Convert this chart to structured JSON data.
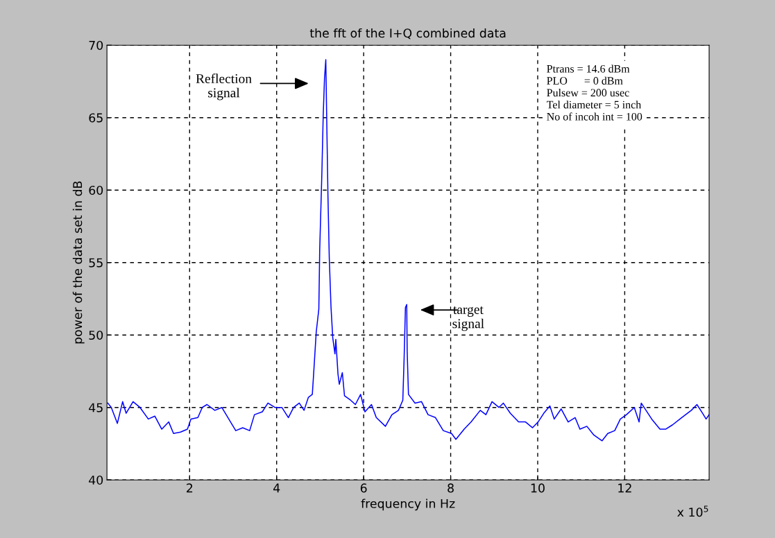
{
  "chart_data": {
    "type": "line",
    "title": "the fft of the I+Q combined data",
    "xlabel": "frequency in Hz",
    "ylabel": "power of the data set in dB",
    "xlim": [
      0.1,
      13.94
    ],
    "ylim": [
      40,
      70
    ],
    "xticks": [
      2,
      4,
      6,
      8,
      10,
      12
    ],
    "yticks": [
      40,
      45,
      50,
      55,
      60,
      65,
      70
    ],
    "grid": true,
    "legend": false,
    "marker": "none",
    "line_style": "solid",
    "x": [
      0.12,
      0.2,
      0.34,
      0.46,
      0.54,
      0.7,
      0.86,
      1.05,
      1.2,
      1.36,
      1.52,
      1.63,
      1.79,
      1.95,
      2.03,
      2.19,
      2.29,
      2.4,
      2.58,
      2.74,
      2.9,
      3.06,
      3.22,
      3.38,
      3.49,
      3.67,
      3.8,
      3.96,
      4.12,
      4.27,
      4.39,
      4.52,
      4.63,
      4.73,
      4.82,
      4.85,
      4.91,
      4.97,
      4.99,
      5.04,
      5.07,
      5.1,
      5.13,
      5.15,
      5.18,
      5.21,
      5.25,
      5.29,
      5.34,
      5.36,
      5.41,
      5.44,
      5.51,
      5.56,
      5.7,
      5.81,
      5.93,
      6.03,
      6.18,
      6.29,
      6.5,
      6.65,
      6.8,
      6.9,
      6.93,
      6.96,
      6.99,
      7.0,
      7.03,
      7.18,
      7.33,
      7.48,
      7.65,
      7.83,
      8.02,
      8.12,
      8.31,
      8.47,
      8.68,
      8.81,
      8.95,
      9.11,
      9.21,
      9.37,
      9.56,
      9.72,
      9.88,
      10.01,
      10.14,
      10.28,
      10.38,
      10.54,
      10.7,
      10.86,
      10.97,
      11.13,
      11.29,
      11.48,
      11.61,
      11.77,
      11.9,
      12.04,
      12.22,
      12.33,
      12.38,
      12.49,
      12.62,
      12.81,
      12.94,
      13.1,
      13.31,
      13.53,
      13.66,
      13.79,
      13.87,
      13.94
    ],
    "series": [
      {
        "color": "#0000ff",
        "values": [
          45.3,
          45.0,
          43.9,
          45.4,
          44.6,
          45.4,
          45.0,
          44.2,
          44.4,
          43.5,
          44.0,
          43.2,
          43.3,
          43.5,
          44.2,
          44.3,
          45.0,
          45.2,
          44.8,
          45.0,
          44.2,
          43.4,
          43.6,
          43.4,
          44.5,
          44.7,
          45.3,
          45.0,
          45.0,
          44.3,
          45.0,
          45.3,
          44.8,
          45.7,
          45.9,
          47.3,
          50.2,
          51.8,
          55.9,
          61.2,
          65.1,
          67.7,
          69.0,
          65.1,
          59.5,
          55.3,
          51.9,
          49.8,
          48.7,
          49.7,
          47.3,
          46.6,
          47.4,
          45.8,
          45.5,
          45.2,
          45.9,
          44.7,
          45.2,
          44.3,
          43.7,
          44.5,
          44.8,
          45.5,
          48.4,
          51.9,
          52.1,
          48.9,
          45.9,
          45.3,
          45.4,
          44.5,
          44.3,
          43.4,
          43.2,
          42.8,
          43.5,
          44.0,
          44.8,
          44.5,
          45.4,
          45.0,
          45.3,
          44.6,
          44.0,
          44.0,
          43.6,
          44.0,
          44.6,
          45.1,
          44.2,
          44.9,
          44.0,
          44.3,
          43.5,
          43.7,
          43.1,
          42.7,
          43.2,
          43.4,
          44.2,
          44.5,
          45.0,
          44.0,
          45.3,
          44.8,
          44.2,
          43.5,
          43.5,
          43.8,
          44.3,
          44.8,
          45.2,
          44.6,
          44.2,
          44.5
        ]
      }
    ],
    "annotations": [
      "Reflection\nsignal",
      "target\nsignal",
      "Ptrans = 14.6 dBm\nPLO      = 0 dBm\nPulsew = 200 usec\nTel diameter = 5 inch\nNo of incoh int = 100",
      "x 10$^{5}$"
    ]
  }
}
